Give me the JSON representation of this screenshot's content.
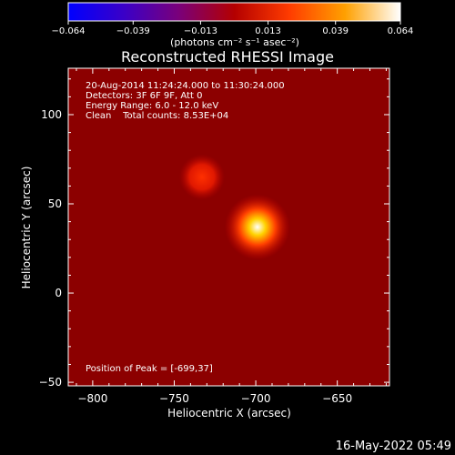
{
  "chart_data": {
    "type": "heatmap",
    "title": "Reconstructed RHESSI Image",
    "xlabel": "Heliocentric X (arcsec)",
    "ylabel": "Heliocentric Y (arcsec)",
    "xlim": [
      -815,
      -618
    ],
    "ylim": [
      -52,
      126
    ],
    "x_ticks": [
      -800,
      -750,
      -700,
      -650
    ],
    "y_ticks": [
      -50,
      0,
      50,
      100
    ],
    "x_tick_labels": [
      "−800",
      "−750",
      "−700",
      "−650"
    ],
    "y_tick_labels": [
      "−50",
      "0",
      "50",
      "100"
    ],
    "colorbar": {
      "range": [
        -0.064,
        0.064
      ],
      "tick_values": [
        -0.064,
        -0.039,
        -0.013,
        0.013,
        0.039,
        0.064
      ],
      "tick_labels": [
        "−0.064",
        "−0.039",
        "−0.013",
        "0.013",
        "0.039",
        "0.064"
      ],
      "units_label": "(photons cm⁻² s⁻¹ asec⁻²)",
      "colors": [
        "#0000ff",
        "#3a00c8",
        "#7a007a",
        "#b40000",
        "#ff3c00",
        "#ffa000",
        "#ffffff"
      ]
    },
    "info_lines": [
      "20-Aug-2014 11:24:24.000 to 11:30:24.000",
      "Detectors: 3F 6F 9F, Att 0",
      "Energy Range: 6.0 - 12.0 keV",
      "Clean    Total counts: 8.53E+04"
    ],
    "peak_label": "Position of Peak = [-699,37]",
    "sources": [
      {
        "x": -699,
        "y": 37,
        "intensity": 1.0
      },
      {
        "x": -733,
        "y": 65,
        "intensity": 0.5
      }
    ],
    "background_level": 0.3
  },
  "footer": {
    "timestamp": "16-May-2022 05:49"
  }
}
